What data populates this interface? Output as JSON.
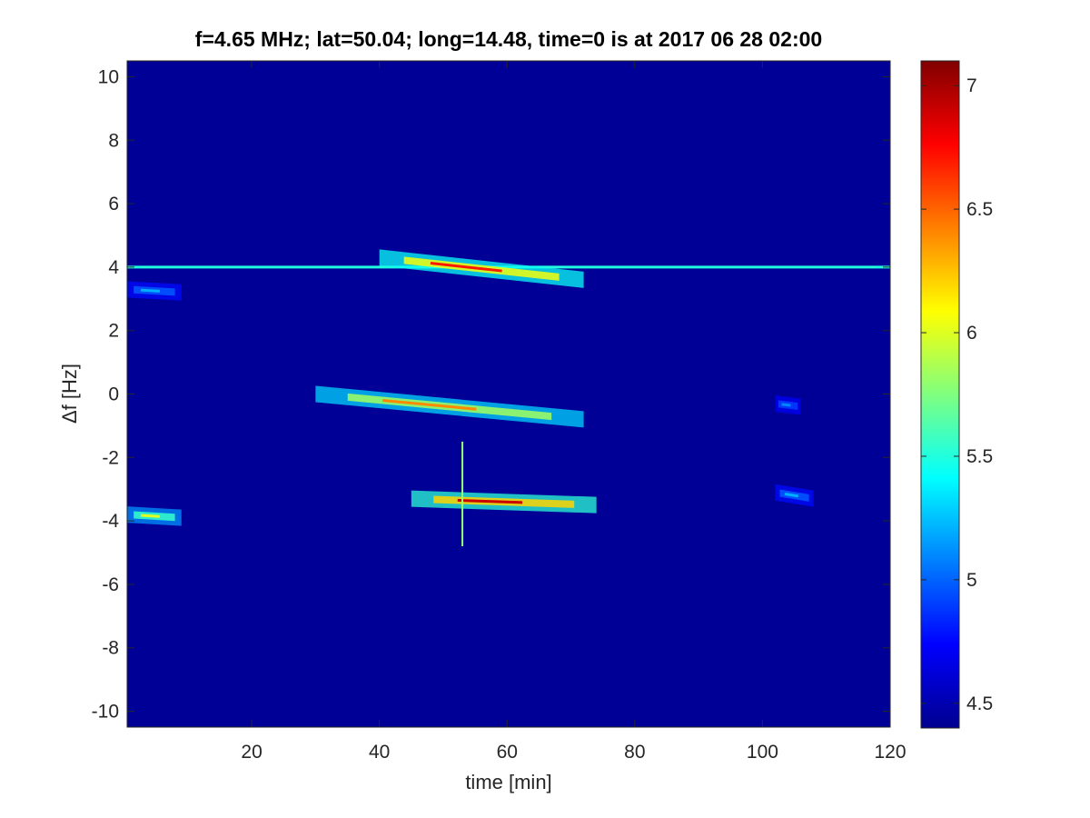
{
  "chart_data": {
    "type": "heatmap",
    "title": "f=4.65 MHz;  lat=50.04; long=14.48, time=0 is at 2017 06 28 02:00",
    "xlabel": "time [min]",
    "ylabel": "Δf [Hz]",
    "xlim": [
      0.5,
      120
    ],
    "ylim": [
      -10.5,
      10.5
    ],
    "x_ticks": [
      20,
      40,
      60,
      80,
      100,
      120
    ],
    "x_tick_labels": [
      "20",
      "40",
      "60",
      "80",
      "100",
      "120"
    ],
    "y_ticks": [
      -10,
      -8,
      -6,
      -4,
      -2,
      0,
      2,
      4,
      6,
      8,
      10
    ],
    "y_tick_labels": [
      "-10",
      "-8",
      "-6",
      "-4",
      "-2",
      "0",
      "2",
      "4",
      "6",
      "8",
      "10"
    ],
    "colormap": "jet",
    "clim": [
      4.4,
      7.1
    ],
    "colorbar_ticks": [
      4.5,
      5,
      5.5,
      6,
      6.5,
      7
    ],
    "colorbar_tick_labels": [
      "4.5",
      "5",
      "5.5",
      "6",
      "6.5",
      "7"
    ],
    "background_value": 4.45,
    "grid": false,
    "features": [
      {
        "kind": "line",
        "y": 4.0,
        "x_start": 0.5,
        "x_end": 120,
        "value": 5.5
      },
      {
        "kind": "blob",
        "x_start": 40,
        "x_end": 72,
        "y_start": 4.3,
        "y_end": 3.6,
        "value": 6.7
      },
      {
        "kind": "blob",
        "x_start": 0.5,
        "x_end": 9,
        "y_start": 3.3,
        "y_end": 3.2,
        "value": 5.2
      },
      {
        "kind": "blob",
        "x_start": 30,
        "x_end": 72,
        "y_start": 0.0,
        "y_end": -0.8,
        "value": 6.4
      },
      {
        "kind": "blob",
        "x_start": 102,
        "x_end": 106,
        "y_start": -0.3,
        "y_end": -0.4,
        "value": 5.1
      },
      {
        "kind": "blob",
        "x_start": 45,
        "x_end": 74,
        "y_start": -3.3,
        "y_end": -3.5,
        "value": 6.9
      },
      {
        "kind": "blob",
        "x_start": 0.5,
        "x_end": 9,
        "y_start": -3.8,
        "y_end": -3.9,
        "value": 6.0
      },
      {
        "kind": "blob",
        "x_start": 102,
        "x_end": 108,
        "y_start": -3.1,
        "y_end": -3.3,
        "value": 5.2
      },
      {
        "kind": "vline",
        "x": 53,
        "y_start": -1.5,
        "y_end": -4.8,
        "value": 5.8
      }
    ]
  }
}
